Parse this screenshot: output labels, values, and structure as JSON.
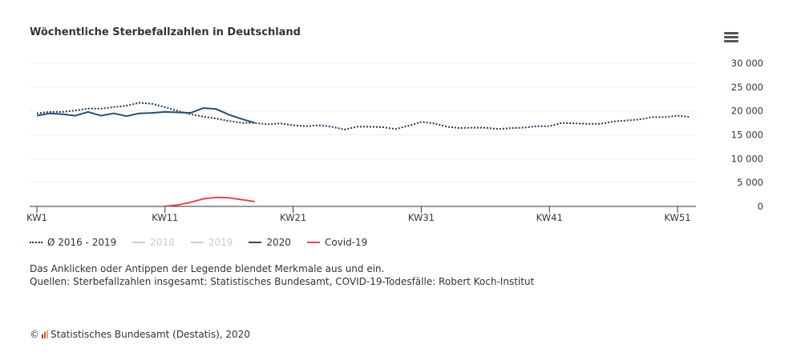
{
  "chart_data": {
    "type": "line",
    "title": "Wöchentliche Sterbefallzahlen in Deutschland",
    "xlabel": "",
    "ylabel": "",
    "ylim": [
      0,
      30000
    ],
    "yticks": [
      "0",
      "5 000",
      "10 000",
      "15 000",
      "20 000",
      "25 000",
      "30 000"
    ],
    "ytick_values": [
      0,
      5000,
      10000,
      15000,
      20000,
      25000,
      30000
    ],
    "xticks": [
      "KW1",
      "KW11",
      "KW21",
      "KW31",
      "KW41",
      "KW51"
    ],
    "xtick_values": [
      1,
      11,
      21,
      31,
      41,
      51
    ],
    "xlim": [
      1,
      52
    ],
    "grid": true,
    "legend_position": "bottom-left",
    "series": [
      {
        "name": "Ø 2016 - 2019",
        "color": "#1b3a5c",
        "style": "dotted",
        "visible": true,
        "x": [
          1,
          2,
          3,
          4,
          5,
          6,
          7,
          8,
          9,
          10,
          11,
          12,
          13,
          14,
          15,
          16,
          17,
          18,
          19,
          20,
          21,
          22,
          23,
          24,
          25,
          26,
          27,
          28,
          29,
          30,
          31,
          32,
          33,
          34,
          35,
          36,
          37,
          38,
          39,
          40,
          41,
          42,
          43,
          44,
          45,
          46,
          47,
          48,
          49,
          50,
          51,
          52
        ],
        "values": [
          19500,
          19800,
          19800,
          20100,
          20500,
          20500,
          20800,
          21100,
          21700,
          21500,
          20800,
          20000,
          19300,
          18800,
          18400,
          17900,
          17500,
          17500,
          17200,
          17400,
          17000,
          16800,
          17000,
          16700,
          16100,
          16700,
          16700,
          16600,
          16200,
          16900,
          17700,
          17400,
          16700,
          16400,
          16500,
          16500,
          16200,
          16400,
          16500,
          16800,
          16800,
          17500,
          17400,
          17300,
          17300,
          17800,
          18000,
          18200,
          18700,
          18700,
          19000,
          18700
        ]
      },
      {
        "name": "2018",
        "color": "#cccccc",
        "style": "solid",
        "visible": false,
        "x": [],
        "values": []
      },
      {
        "name": "2019",
        "color": "#cccccc",
        "style": "solid",
        "visible": false,
        "x": [],
        "values": []
      },
      {
        "name": "2020",
        "color": "#2b4d70",
        "style": "solid",
        "visible": true,
        "x": [
          1,
          2,
          3,
          4,
          5,
          6,
          7,
          8,
          9,
          10,
          11,
          12,
          13,
          14,
          15,
          16,
          17,
          18
        ],
        "values": [
          19000,
          19500,
          19300,
          19000,
          19800,
          19000,
          19500,
          18900,
          19500,
          19600,
          19800,
          19700,
          19600,
          20600,
          20400,
          19200,
          18300,
          17500
        ]
      },
      {
        "name": "Covid-19",
        "color": "#e0485a",
        "style": "solid",
        "visible": true,
        "x": [
          11,
          12,
          13,
          14,
          15,
          16,
          17,
          18
        ],
        "values": [
          50,
          300,
          850,
          1600,
          1900,
          1800,
          1400,
          1000
        ]
      }
    ]
  },
  "note": "Das Anklicken oder Antippen der Legende blendet Merkmale aus und ein.",
  "sources": "Quellen: Sterbefallzahlen insgesamt: Statistisches Bundesamt, COVID-19-Todesfälle: Robert Koch-Institut",
  "credit": "Statistisches Bundesamt (Destatis), 2020",
  "copyright": "©"
}
